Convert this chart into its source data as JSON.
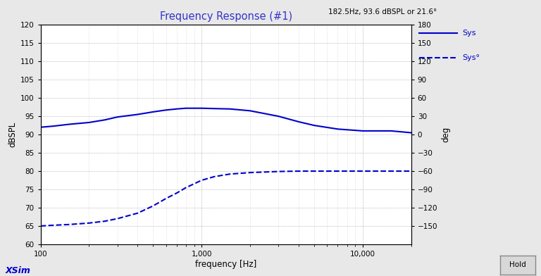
{
  "title": "Frequency Response (#1)",
  "title_color": "#3333cc",
  "xlabel": "frequency [Hz]",
  "ylabel_left": "dBSPL",
  "ylabel_right": "deg",
  "xlim": [
    100,
    20000
  ],
  "ylim_left": [
    60,
    120
  ],
  "ylim_right": [
    -180,
    180
  ],
  "yticks_left": [
    60,
    65,
    70,
    75,
    80,
    85,
    90,
    95,
    100,
    105,
    110,
    115,
    120
  ],
  "yticks_right": [
    -150,
    -120,
    -90,
    -60,
    -30,
    0,
    30,
    60,
    90,
    120,
    150,
    180
  ],
  "background_color": "#e8e8e8",
  "plot_bg_color": "#ffffff",
  "grid_color": "#999999",
  "annotation_text": "182.5Hz, 93.6 dBSPL or 21.6°",
  "annotation_bg": "#00ffff",
  "xsim_text": "XSim",
  "xsim_color": "#0000cc",
  "hold_text": "Hold",
  "legend_solid": "Sys",
  "legend_dash": "Sys°",
  "line_color": "#0000cc",
  "sys_freq": [
    100,
    120,
    150,
    200,
    250,
    300,
    400,
    500,
    600,
    700,
    800,
    1000,
    1200,
    1500,
    2000,
    3000,
    4000,
    5000,
    7000,
    10000,
    15000,
    20000
  ],
  "sys_db": [
    92.0,
    92.3,
    92.8,
    93.3,
    94.0,
    94.8,
    95.5,
    96.2,
    96.7,
    97.0,
    97.2,
    97.2,
    97.1,
    97.0,
    96.5,
    95.0,
    93.5,
    92.5,
    91.5,
    91.0,
    91.0,
    90.5
  ],
  "sys2_freq": [
    100,
    120,
    150,
    200,
    250,
    300,
    400,
    500,
    600,
    700,
    800,
    1000,
    1200,
    1500,
    2000,
    3000,
    4000,
    5000,
    7000,
    10000,
    15000,
    20000
  ],
  "sys2_db": [
    65.0,
    65.2,
    65.4,
    65.8,
    66.3,
    67.0,
    68.5,
    70.5,
    72.5,
    74.0,
    75.5,
    77.5,
    78.5,
    79.2,
    79.6,
    79.9,
    80.0,
    80.0,
    80.0,
    80.0,
    80.0,
    80.0
  ]
}
